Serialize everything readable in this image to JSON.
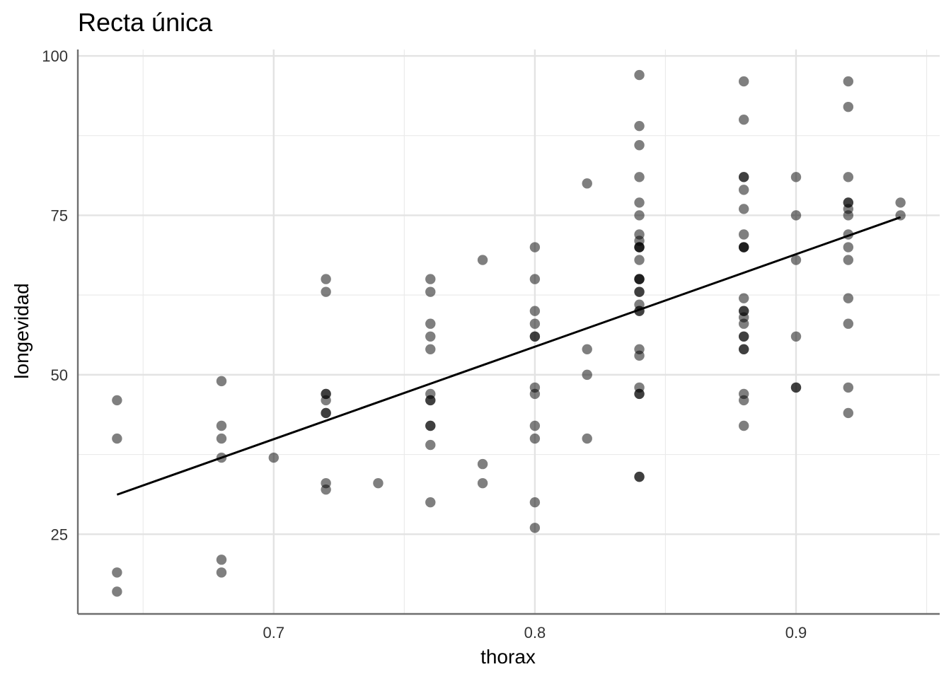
{
  "chart_data": {
    "type": "scatter",
    "title": "Recta única",
    "xlabel": "thorax",
    "ylabel": "longevidad",
    "xlim": [
      0.625,
      0.955
    ],
    "ylim": [
      12.5,
      101
    ],
    "x_ticks": [
      0.7,
      0.8,
      0.9
    ],
    "x_tick_labels": [
      "0.7",
      "0.8",
      "0.9"
    ],
    "y_ticks": [
      25,
      50,
      75,
      100
    ],
    "y_tick_labels": [
      "25",
      "50",
      "75",
      "100"
    ],
    "x_minor_gridlines": [
      0.65,
      0.75,
      0.85,
      0.95
    ],
    "y_minor_gridlines": [
      12.5,
      37.5,
      62.5,
      87.5
    ],
    "grid": true,
    "point_color": "#000000",
    "point_opacity": 0.5,
    "line_color": "#000000",
    "points": [
      [
        0.64,
        46
      ],
      [
        0.64,
        40
      ],
      [
        0.64,
        19
      ],
      [
        0.64,
        16
      ],
      [
        0.68,
        49
      ],
      [
        0.68,
        42
      ],
      [
        0.68,
        40
      ],
      [
        0.68,
        37
      ],
      [
        0.68,
        21
      ],
      [
        0.68,
        19
      ],
      [
        0.7,
        37
      ],
      [
        0.72,
        65
      ],
      [
        0.72,
        63
      ],
      [
        0.72,
        47
      ],
      [
        0.72,
        47
      ],
      [
        0.72,
        46
      ],
      [
        0.72,
        44
      ],
      [
        0.72,
        44
      ],
      [
        0.72,
        33
      ],
      [
        0.72,
        32
      ],
      [
        0.74,
        33
      ],
      [
        0.76,
        65
      ],
      [
        0.76,
        63
      ],
      [
        0.76,
        58
      ],
      [
        0.76,
        56
      ],
      [
        0.76,
        54
      ],
      [
        0.76,
        47
      ],
      [
        0.76,
        46
      ],
      [
        0.76,
        46
      ],
      [
        0.76,
        42
      ],
      [
        0.76,
        42
      ],
      [
        0.76,
        39
      ],
      [
        0.76,
        30
      ],
      [
        0.78,
        68
      ],
      [
        0.78,
        36
      ],
      [
        0.78,
        33
      ],
      [
        0.8,
        70
      ],
      [
        0.8,
        65
      ],
      [
        0.8,
        60
      ],
      [
        0.8,
        58
      ],
      [
        0.8,
        56
      ],
      [
        0.8,
        56
      ],
      [
        0.8,
        48
      ],
      [
        0.8,
        47
      ],
      [
        0.8,
        42
      ],
      [
        0.8,
        40
      ],
      [
        0.8,
        30
      ],
      [
        0.8,
        26
      ],
      [
        0.82,
        80
      ],
      [
        0.82,
        54
      ],
      [
        0.82,
        50
      ],
      [
        0.82,
        40
      ],
      [
        0.84,
        97
      ],
      [
        0.84,
        89
      ],
      [
        0.84,
        86
      ],
      [
        0.84,
        81
      ],
      [
        0.84,
        77
      ],
      [
        0.84,
        75
      ],
      [
        0.84,
        72
      ],
      [
        0.84,
        71
      ],
      [
        0.84,
        70
      ],
      [
        0.84,
        70
      ],
      [
        0.84,
        70
      ],
      [
        0.84,
        68
      ],
      [
        0.84,
        65
      ],
      [
        0.84,
        65
      ],
      [
        0.84,
        65
      ],
      [
        0.84,
        63
      ],
      [
        0.84,
        63
      ],
      [
        0.84,
        61
      ],
      [
        0.84,
        60
      ],
      [
        0.84,
        60
      ],
      [
        0.84,
        54
      ],
      [
        0.84,
        53
      ],
      [
        0.84,
        48
      ],
      [
        0.84,
        47
      ],
      [
        0.84,
        47
      ],
      [
        0.84,
        34
      ],
      [
        0.84,
        34
      ],
      [
        0.88,
        96
      ],
      [
        0.88,
        90
      ],
      [
        0.88,
        81
      ],
      [
        0.88,
        81
      ],
      [
        0.88,
        79
      ],
      [
        0.88,
        76
      ],
      [
        0.88,
        72
      ],
      [
        0.88,
        70
      ],
      [
        0.88,
        70
      ],
      [
        0.88,
        70
      ],
      [
        0.88,
        62
      ],
      [
        0.88,
        60
      ],
      [
        0.88,
        60
      ],
      [
        0.88,
        59
      ],
      [
        0.88,
        58
      ],
      [
        0.88,
        56
      ],
      [
        0.88,
        56
      ],
      [
        0.88,
        54
      ],
      [
        0.88,
        54
      ],
      [
        0.88,
        47
      ],
      [
        0.88,
        46
      ],
      [
        0.88,
        42
      ],
      [
        0.9,
        81
      ],
      [
        0.9,
        75
      ],
      [
        0.9,
        68
      ],
      [
        0.9,
        56
      ],
      [
        0.9,
        48
      ],
      [
        0.9,
        48
      ],
      [
        0.92,
        96
      ],
      [
        0.92,
        92
      ],
      [
        0.92,
        81
      ],
      [
        0.92,
        77
      ],
      [
        0.92,
        77
      ],
      [
        0.92,
        76
      ],
      [
        0.92,
        75
      ],
      [
        0.92,
        72
      ],
      [
        0.92,
        70
      ],
      [
        0.92,
        68
      ],
      [
        0.92,
        62
      ],
      [
        0.92,
        58
      ],
      [
        0.92,
        48
      ],
      [
        0.92,
        44
      ],
      [
        0.94,
        77
      ],
      [
        0.94,
        75
      ]
    ],
    "fit_line": {
      "x": [
        0.64,
        0.94
      ],
      "y": [
        31.2,
        74.7
      ]
    }
  }
}
